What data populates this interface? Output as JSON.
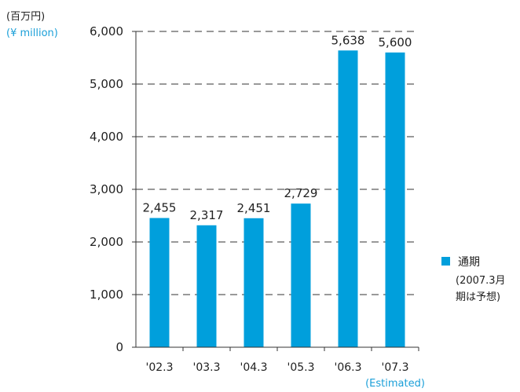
{
  "chart_data": {
    "type": "bar",
    "unit_label_jp": "(百万円)",
    "unit_label_en": "(¥ million)",
    "categories": [
      "'02.3",
      "'03.3",
      "'04.3",
      "'05.3",
      "'06.3",
      "'07.3"
    ],
    "category_note": "(Estimated)",
    "series": [
      {
        "name": "通期",
        "values": [
          2455,
          2317,
          2451,
          2729,
          5638,
          5600
        ]
      }
    ],
    "data_labels": [
      "2,455",
      "2,317",
      "2,451",
      "2,729",
      "5,638",
      "5,600"
    ],
    "yticks": [
      0,
      1000,
      2000,
      3000,
      4000,
      5000,
      6000
    ],
    "ytick_labels": [
      "0",
      "1,000",
      "2,000",
      "3,000",
      "4,000",
      "5,000",
      "6,000"
    ],
    "ylim": [
      0,
      6000
    ],
    "grid": "dashed horizontal",
    "legend": {
      "position": "right",
      "label": "通期",
      "note_lines": [
        "(2007.3月",
        "期は予想)"
      ]
    },
    "colors": {
      "bar": "#009fdc",
      "accent_text": "#1a9fd8",
      "grid": "#333333"
    }
  }
}
